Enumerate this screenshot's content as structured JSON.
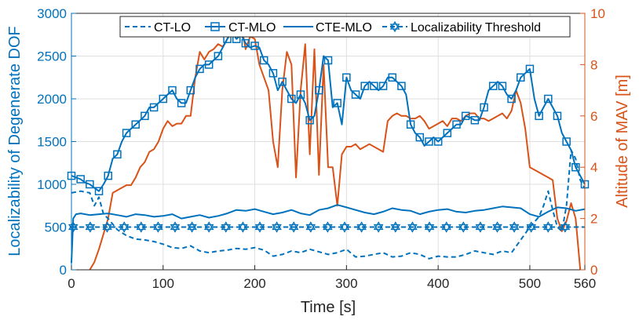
{
  "chart_data": {
    "type": "line",
    "xlabel": "Time [s]",
    "ylabel_left": "Localizability of Degenerate DOF",
    "ylabel_right": "Altitude of MAV [m]",
    "xlim": [
      0,
      560
    ],
    "ylim_left": [
      0,
      3000
    ],
    "ylim_right": [
      0,
      10
    ],
    "x_ticks": [
      0,
      100,
      200,
      300,
      400,
      500,
      560
    ],
    "y_ticks_left": [
      0,
      500,
      1000,
      1500,
      2000,
      2500,
      3000
    ],
    "y_ticks_right": [
      0,
      2,
      4,
      6,
      8,
      10
    ],
    "grid": true,
    "legend_position": "top-right",
    "colors": {
      "left_axis": "#0072BD",
      "right_axis": "#D95319",
      "grid": "#DFDFDF",
      "axis": "#262626"
    },
    "series": [
      {
        "name": "CT-LO",
        "axis": "left",
        "style": "dashed",
        "marker": "none",
        "color": "#0072BD",
        "x": [
          0,
          5,
          10,
          20,
          25,
          30,
          35,
          40,
          50,
          60,
          70,
          80,
          90,
          100,
          110,
          120,
          130,
          140,
          150,
          160,
          170,
          180,
          190,
          200,
          210,
          220,
          230,
          240,
          250,
          260,
          270,
          280,
          290,
          300,
          310,
          320,
          330,
          340,
          350,
          360,
          370,
          380,
          390,
          400,
          410,
          420,
          430,
          440,
          450,
          460,
          470,
          480,
          490,
          500,
          510,
          515,
          520,
          525,
          530,
          535,
          540,
          545,
          550,
          555,
          560
        ],
        "values": [
          900,
          910,
          920,
          900,
          750,
          850,
          650,
          600,
          470,
          400,
          360,
          350,
          330,
          300,
          260,
          250,
          280,
          220,
          200,
          220,
          230,
          250,
          240,
          260,
          230,
          160,
          180,
          220,
          200,
          240,
          210,
          180,
          200,
          240,
          150,
          160,
          180,
          200,
          150,
          160,
          200,
          180,
          130,
          160,
          150,
          150,
          180,
          220,
          200,
          180,
          220,
          200,
          350,
          500,
          620,
          750,
          920,
          700,
          500,
          450,
          750,
          1400,
          1300,
          1050,
          950
        ]
      },
      {
        "name": "CT-MLO",
        "axis": "left",
        "style": "solid",
        "marker": "square",
        "color": "#0072BD",
        "x": [
          0,
          5,
          10,
          15,
          20,
          25,
          30,
          35,
          40,
          45,
          50,
          55,
          60,
          65,
          70,
          75,
          80,
          85,
          90,
          95,
          100,
          105,
          110,
          115,
          120,
          125,
          130,
          135,
          140,
          145,
          150,
          155,
          160,
          165,
          170,
          175,
          180,
          185,
          190,
          195,
          200,
          205,
          210,
          215,
          220,
          225,
          230,
          235,
          240,
          245,
          250,
          255,
          260,
          265,
          270,
          275,
          280,
          285,
          290,
          295,
          300,
          305,
          310,
          315,
          320,
          325,
          330,
          335,
          340,
          345,
          350,
          355,
          360,
          365,
          370,
          375,
          380,
          385,
          390,
          395,
          400,
          405,
          410,
          415,
          420,
          425,
          430,
          435,
          440,
          445,
          450,
          455,
          460,
          465,
          470,
          475,
          480,
          485,
          490,
          495,
          500,
          505,
          510,
          515,
          520,
          525,
          530,
          535,
          540,
          545,
          550,
          555,
          560
        ],
        "values": [
          1100,
          1080,
          1060,
          1020,
          1000,
          960,
          920,
          1000,
          1100,
          1300,
          1350,
          1500,
          1600,
          1650,
          1700,
          1750,
          1800,
          1900,
          1900,
          1950,
          2000,
          2050,
          2100,
          2000,
          1950,
          1950,
          2100,
          2250,
          2350,
          2400,
          2400,
          2450,
          2500,
          2600,
          2700,
          2780,
          2700,
          2750,
          2650,
          2600,
          2620,
          2600,
          2450,
          2400,
          2300,
          2100,
          2200,
          2100,
          2000,
          1950,
          2050,
          1950,
          1750,
          1800,
          2100,
          2500,
          2450,
          1900,
          1950,
          1700,
          2250,
          2100,
          2050,
          2000,
          2150,
          2200,
          2150,
          2100,
          2150,
          2250,
          2250,
          2200,
          2150,
          2050,
          1700,
          1600,
          1550,
          1450,
          1500,
          1550,
          1500,
          1550,
          1600,
          1650,
          1700,
          1700,
          1800,
          1780,
          1750,
          1750,
          1900,
          2100,
          2150,
          2200,
          2150,
          2050,
          2000,
          2100,
          2250,
          2300,
          2350,
          2000,
          1800,
          1900,
          2000,
          1900,
          1800,
          1600,
          1500,
          1400,
          1200,
          1100,
          1000
        ]
      },
      {
        "name": "CTE-MLO",
        "axis": "left",
        "style": "solid",
        "marker": "none",
        "color": "#0072BD",
        "x": [
          0,
          2,
          5,
          10,
          20,
          30,
          40,
          50,
          60,
          70,
          80,
          90,
          100,
          110,
          120,
          130,
          140,
          150,
          160,
          170,
          180,
          190,
          200,
          210,
          220,
          230,
          240,
          250,
          260,
          270,
          280,
          290,
          300,
          310,
          320,
          330,
          340,
          350,
          360,
          370,
          380,
          390,
          400,
          410,
          420,
          430,
          440,
          450,
          460,
          470,
          480,
          490,
          500,
          510,
          520,
          530,
          540,
          550,
          560
        ],
        "values": [
          80,
          600,
          650,
          660,
          640,
          650,
          660,
          640,
          620,
          650,
          640,
          620,
          630,
          650,
          600,
          620,
          640,
          610,
          630,
          660,
          700,
          690,
          710,
          680,
          650,
          670,
          700,
          660,
          640,
          700,
          720,
          760,
          730,
          700,
          670,
          650,
          680,
          720,
          700,
          690,
          650,
          680,
          700,
          710,
          680,
          670,
          690,
          700,
          720,
          740,
          730,
          720,
          650,
          620,
          680,
          730,
          720,
          690,
          710
        ]
      },
      {
        "name": "Localizability Threshold",
        "axis": "left",
        "style": "dashed",
        "marker": "hexagram",
        "color": "#0072BD",
        "x": [
          0,
          560
        ],
        "values": [
          500,
          500
        ]
      },
      {
        "name": "Altitude",
        "axis": "right",
        "style": "solid",
        "marker": "none",
        "color": "#D95319",
        "x": [
          20,
          25,
          30,
          35,
          40,
          45,
          50,
          55,
          60,
          65,
          70,
          75,
          80,
          85,
          90,
          95,
          100,
          105,
          110,
          115,
          120,
          125,
          130,
          135,
          140,
          145,
          150,
          155,
          160,
          165,
          170,
          175,
          180,
          185,
          190,
          195,
          200,
          205,
          210,
          215,
          220,
          225,
          230,
          235,
          240,
          245,
          250,
          255,
          260,
          265,
          270,
          275,
          280,
          285,
          290,
          295,
          300,
          305,
          310,
          315,
          320,
          325,
          330,
          335,
          340,
          345,
          350,
          355,
          360,
          365,
          370,
          375,
          380,
          385,
          390,
          395,
          400,
          405,
          410,
          415,
          420,
          425,
          430,
          435,
          440,
          445,
          450,
          455,
          460,
          465,
          470,
          475,
          480,
          485,
          490,
          495,
          500,
          505,
          510,
          515,
          520,
          525,
          530,
          535,
          540,
          545,
          550,
          555
        ],
        "values": [
          0.0,
          0.3,
          0.8,
          1.4,
          2.0,
          3.0,
          3.1,
          3.2,
          3.3,
          3.3,
          3.6,
          4.0,
          4.2,
          4.6,
          4.7,
          5.0,
          5.5,
          5.8,
          5.6,
          5.7,
          5.7,
          6.0,
          6.0,
          7.5,
          8.5,
          8.2,
          8.5,
          8.6,
          8.8,
          8.7,
          9.0,
          9.5,
          9.1,
          9.6,
          8.6,
          9.1,
          9.0,
          8.0,
          7.5,
          7.0,
          5.0,
          4.0,
          7.0,
          8.5,
          8.0,
          3.6,
          7.0,
          8.8,
          4.5,
          8.6,
          3.7,
          8.0,
          4.0,
          4.0,
          2.5,
          4.5,
          4.8,
          4.8,
          4.9,
          4.7,
          4.8,
          4.9,
          4.8,
          4.7,
          4.6,
          5.8,
          6.0,
          6.1,
          6.0,
          6.0,
          5.9,
          5.9,
          6.0,
          5.8,
          5.5,
          5.6,
          5.7,
          5.8,
          5.6,
          5.9,
          5.9,
          5.8,
          6.0,
          6.1,
          6.1,
          5.9,
          5.9,
          5.8,
          5.9,
          6.0,
          6.1,
          5.9,
          6.2,
          7.0,
          6.5,
          5.5,
          4.0,
          3.9,
          3.8,
          3.7,
          3.6,
          3.5,
          2.0,
          1.5,
          1.9,
          2.6,
          2.0,
          0.0
        ]
      }
    ]
  }
}
